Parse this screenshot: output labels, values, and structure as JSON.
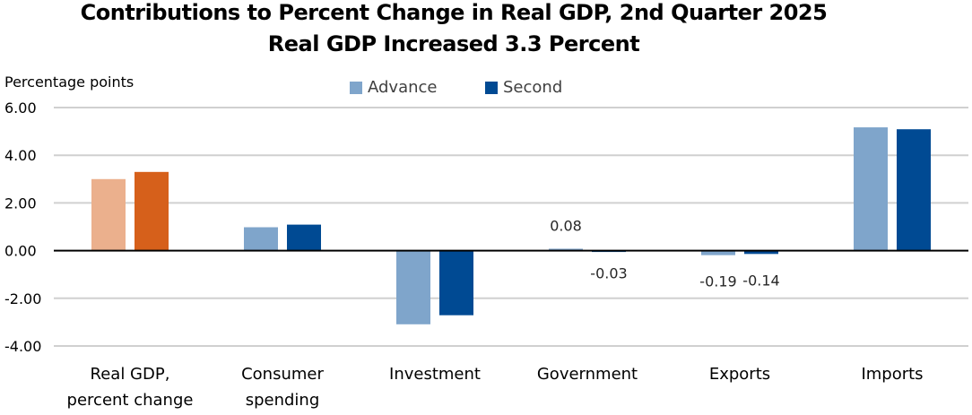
{
  "chart_data": {
    "type": "bar",
    "title": "Contributions to Percent Change in Real GDP, 2nd Quarter 2025",
    "subtitle": "Real GDP Increased 3.3 Percent",
    "ylabel": "Percentage points",
    "xlabel": "",
    "ylim": [
      -4,
      6
    ],
    "yticks": [
      "6.00",
      "4.00",
      "2.00",
      "0.00",
      "-2.00",
      "-4.00"
    ],
    "ytick_values": [
      6,
      4,
      2,
      0,
      -2,
      -4
    ],
    "grid": true,
    "legend_position": "top-center",
    "categories": [
      [
        "Real GDP,",
        "percent change"
      ],
      [
        "Consumer",
        "spending"
      ],
      [
        "Investment"
      ],
      [
        "Government"
      ],
      [
        "Exports"
      ],
      [
        "Imports"
      ]
    ],
    "series": [
      {
        "name": "Advance",
        "color": "#7fa5cb",
        "values": [
          3.0,
          0.98,
          -3.09,
          0.08,
          -0.19,
          5.17
        ]
      },
      {
        "name": "Second",
        "color": "#004a93",
        "values": [
          3.3,
          1.09,
          -2.71,
          -0.03,
          -0.14,
          5.09
        ]
      }
    ],
    "highlight_colors": {
      "Advance": "#ebb08d",
      "Second": "#d6601b"
    },
    "highlight_category_index": 0,
    "data_labels": [
      {
        "category_index": 3,
        "series_index": 0,
        "text": "0.08"
      },
      {
        "category_index": 3,
        "series_index": 1,
        "text": "-0.03"
      },
      {
        "category_index": 4,
        "series_index": 0,
        "text": "-0.19"
      },
      {
        "category_index": 4,
        "series_index": 1,
        "text": "-0.14"
      }
    ]
  }
}
